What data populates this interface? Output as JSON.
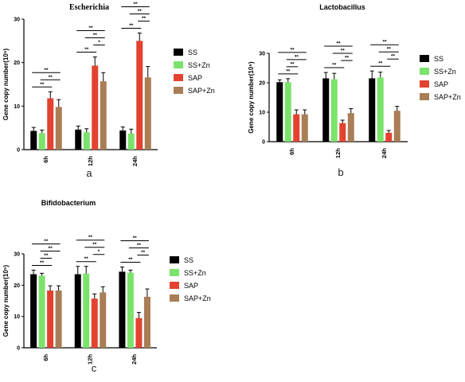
{
  "colors": {
    "SS": "#000000",
    "SS+Zn": "#7be36b",
    "SAP": "#e2422f",
    "SAP+Zn": "#a97d55"
  },
  "legend": [
    "SS",
    "SS+Zn",
    "SAP",
    "SAP+Zn"
  ],
  "chart_data": [
    {
      "type": "bar",
      "panel": "a",
      "title": "Escherichia",
      "ylabel": "Gene copy number(10⁵)",
      "ylim": [
        0,
        30
      ],
      "yticks": [
        0,
        10,
        20,
        30
      ],
      "categories": [
        "6h",
        "12h",
        "24h"
      ],
      "series": [
        {
          "name": "SS",
          "values": [
            4.3,
            4.6,
            4.4
          ],
          "errors": [
            0.8,
            0.8,
            0.8
          ]
        },
        {
          "name": "SS+Zn",
          "values": [
            3.8,
            4.0,
            3.7
          ],
          "errors": [
            0.7,
            0.8,
            1.0
          ]
        },
        {
          "name": "SAP",
          "values": [
            11.8,
            19.3,
            25.0
          ],
          "errors": [
            1.5,
            2.0,
            1.8
          ]
        },
        {
          "name": "SAP+Zn",
          "values": [
            9.8,
            15.7,
            16.6
          ],
          "errors": [
            1.7,
            2.0,
            2.5
          ]
        }
      ],
      "significance": [
        {
          "group": 0,
          "from": 0,
          "to": 3,
          "level": 2,
          "label": "**"
        },
        {
          "group": 0,
          "from": 1,
          "to": 3,
          "level": 1,
          "label": "**"
        },
        {
          "group": 0,
          "from": 0,
          "to": 2,
          "level": 0,
          "label": "**"
        },
        {
          "group": 1,
          "from": 0,
          "to": 3,
          "level": 3,
          "label": "**"
        },
        {
          "group": 1,
          "from": 1,
          "to": 3,
          "level": 2,
          "label": "**"
        },
        {
          "group": 1,
          "from": 2,
          "to": 3,
          "level": 1,
          "label": "*"
        },
        {
          "group": 1,
          "from": 0,
          "to": 2,
          "level": 0,
          "label": "**"
        },
        {
          "group": 2,
          "from": 0,
          "to": 3,
          "level": 3,
          "label": "**"
        },
        {
          "group": 2,
          "from": 1,
          "to": 3,
          "level": 2,
          "label": "**"
        },
        {
          "group": 2,
          "from": 2,
          "to": 3,
          "level": 1,
          "label": "**"
        },
        {
          "group": 2,
          "from": 0,
          "to": 2,
          "level": 0,
          "label": "**"
        }
      ]
    },
    {
      "type": "bar",
      "panel": "b",
      "title": "Lactobacillus",
      "ylabel": "Gene copy number(10⁵)",
      "ylim": [
        0,
        30
      ],
      "yticks": [
        0,
        10,
        20,
        30
      ],
      "categories": [
        "6h",
        "12h",
        "24h"
      ],
      "series": [
        {
          "name": "SS",
          "values": [
            20.2,
            21.5,
            21.5
          ],
          "errors": [
            0.8,
            2.0,
            2.5
          ]
        },
        {
          "name": "SS+Zn",
          "values": [
            20.2,
            21.2,
            21.8
          ],
          "errors": [
            1.2,
            2.0,
            1.8
          ]
        },
        {
          "name": "SAP",
          "values": [
            9.3,
            6.3,
            3.0
          ],
          "errors": [
            1.5,
            1.0,
            0.8
          ]
        },
        {
          "name": "SAP+Zn",
          "values": [
            9.3,
            9.7,
            10.5
          ],
          "errors": [
            1.5,
            1.5,
            1.5
          ]
        }
      ],
      "significance": [
        {
          "group": 0,
          "from": 0,
          "to": 3,
          "level": 3,
          "label": "**"
        },
        {
          "group": 0,
          "from": 1,
          "to": 3,
          "level": 2,
          "label": "**"
        },
        {
          "group": 0,
          "from": 1,
          "to": 2,
          "level": 1,
          "label": "**"
        },
        {
          "group": 0,
          "from": 0,
          "to": 2,
          "level": 0,
          "label": "**"
        },
        {
          "group": 1,
          "from": 0,
          "to": 3,
          "level": 3,
          "label": "**"
        },
        {
          "group": 1,
          "from": 1,
          "to": 3,
          "level": 2,
          "label": "**"
        },
        {
          "group": 1,
          "from": 2,
          "to": 3,
          "level": 1,
          "label": "**"
        },
        {
          "group": 1,
          "from": 0,
          "to": 2,
          "level": 0,
          "label": "**"
        },
        {
          "group": 2,
          "from": 0,
          "to": 3,
          "level": 3,
          "label": "**"
        },
        {
          "group": 2,
          "from": 1,
          "to": 3,
          "level": 2,
          "label": "**"
        },
        {
          "group": 2,
          "from": 2,
          "to": 3,
          "level": 1,
          "label": "**"
        },
        {
          "group": 2,
          "from": 0,
          "to": 2,
          "level": 0,
          "label": "**"
        }
      ]
    },
    {
      "type": "bar",
      "panel": "c",
      "title": "Bifidobacterium",
      "ylabel": "Gene copy number(10⁵)",
      "ylim": [
        0,
        30
      ],
      "yticks": [
        0,
        10,
        20,
        30
      ],
      "categories": [
        "6h",
        "12h",
        "24h"
      ],
      "series": [
        {
          "name": "SS",
          "values": [
            23.5,
            23.5,
            24.3
          ],
          "errors": [
            1.3,
            2.5,
            1.5
          ]
        },
        {
          "name": "SS+Zn",
          "values": [
            23.0,
            23.7,
            24.0
          ],
          "errors": [
            0.8,
            2.3,
            0.8
          ]
        },
        {
          "name": "SAP",
          "values": [
            18.3,
            15.7,
            9.5
          ],
          "errors": [
            1.5,
            1.5,
            1.8
          ]
        },
        {
          "name": "SAP+Zn",
          "values": [
            18.3,
            17.7,
            16.3
          ],
          "errors": [
            1.5,
            1.8,
            2.5
          ]
        }
      ],
      "significance": [
        {
          "group": 0,
          "from": 0,
          "to": 3,
          "level": 3,
          "label": "**"
        },
        {
          "group": 0,
          "from": 1,
          "to": 3,
          "level": 2,
          "label": "**"
        },
        {
          "group": 0,
          "from": 1,
          "to": 2,
          "level": 1,
          "label": "**"
        },
        {
          "group": 0,
          "from": 0,
          "to": 2,
          "level": 0,
          "label": "**"
        },
        {
          "group": 1,
          "from": 0,
          "to": 3,
          "level": 3,
          "label": "**"
        },
        {
          "group": 1,
          "from": 1,
          "to": 3,
          "level": 2,
          "label": "**"
        },
        {
          "group": 1,
          "from": 2,
          "to": 3,
          "level": 1,
          "label": "*"
        },
        {
          "group": 1,
          "from": 0,
          "to": 2,
          "level": 0,
          "label": "**"
        },
        {
          "group": 2,
          "from": 0,
          "to": 3,
          "level": 3,
          "label": "**"
        },
        {
          "group": 2,
          "from": 1,
          "to": 3,
          "level": 2,
          "label": "**"
        },
        {
          "group": 2,
          "from": 2,
          "to": 3,
          "level": 1,
          "label": "**"
        },
        {
          "group": 2,
          "from": 0,
          "to": 2,
          "level": 0,
          "label": "**"
        }
      ]
    }
  ]
}
